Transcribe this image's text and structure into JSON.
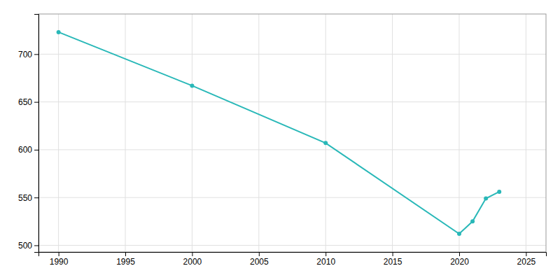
{
  "chart_data": {
    "type": "line",
    "x": [
      1990,
      2000,
      2010,
      2020,
      2021,
      2022,
      2023
    ],
    "values": [
      723,
      667,
      607,
      512,
      525,
      549,
      556
    ],
    "color": "#29b8b8",
    "marker": "circle",
    "xlim": [
      1988.5,
      2026.5
    ],
    "ylim": [
      493,
      742
    ],
    "xticks": [
      1990,
      1995,
      2000,
      2005,
      2010,
      2015,
      2020,
      2025
    ],
    "yticks": [
      500,
      550,
      600,
      650,
      700
    ],
    "grid": true
  }
}
